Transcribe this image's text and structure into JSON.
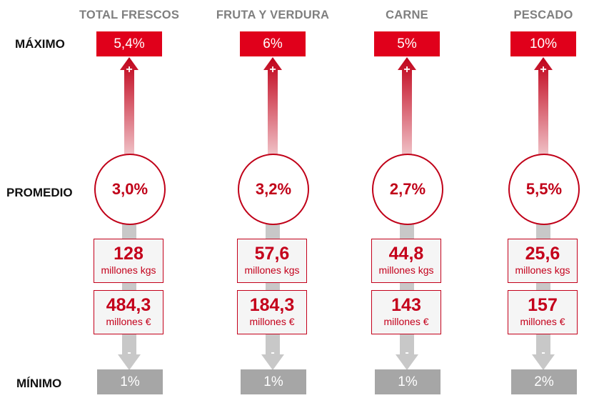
{
  "row_labels": {
    "max": "MÁXIMO",
    "avg": "PROMEDIO",
    "min": "MÍNIMO"
  },
  "columns": [
    {
      "title": "TOTAL FRESCOS",
      "max": "5,4%",
      "avg": "3,0%",
      "volume": "128",
      "volume_unit": "millones kgs",
      "value": "484,3",
      "value_unit": "millones €",
      "min": "1%"
    },
    {
      "title": "FRUTA Y VERDURA",
      "max": "6%",
      "avg": "3,2%",
      "volume": "57,6",
      "volume_unit": "millones kgs",
      "value": "184,3",
      "value_unit": "millones €",
      "min": "1%"
    },
    {
      "title": "CARNE",
      "max": "5%",
      "avg": "2,7%",
      "volume": "44,8",
      "volume_unit": "millones kgs",
      "value": "143",
      "value_unit": "millones €",
      "min": "1%"
    },
    {
      "title": "PESCADO",
      "max": "10%",
      "avg": "5,5%",
      "volume": "25,6",
      "volume_unit": "millones kgs",
      "value": "157",
      "value_unit": "millones €",
      "min": "2%"
    }
  ],
  "markers": {
    "plus": "+",
    "minus": "-"
  },
  "colors": {
    "accent": "#e0001b",
    "dark_red": "#c00018",
    "gray": "#a6a6a6",
    "label_gray": "#7f7f7f"
  }
}
